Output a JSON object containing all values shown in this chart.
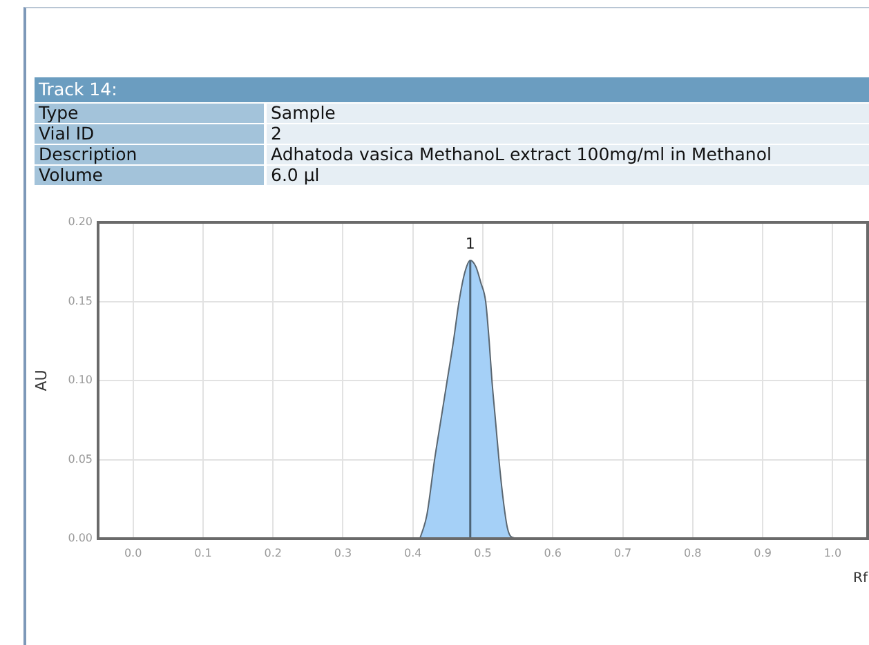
{
  "chart_data": {
    "type": "area",
    "title": "Track 14:",
    "annotations": [
      "Type",
      "Sample",
      "Vial ID",
      "2",
      "Description",
      "Adhatoda vasica MethanoL extract 100mg/ml in Methanol",
      "Volume",
      "6.0 µl",
      {
        "text": "1",
        "x": 0.482,
        "y": 0.176
      }
    ],
    "xlabel": "Rf",
    "ylabel": "AU",
    "x": [
      0.41,
      0.42,
      0.431,
      0.44,
      0.449,
      0.458,
      0.466,
      0.474,
      0.482,
      0.49,
      0.497,
      0.504,
      0.509,
      0.513,
      0.518,
      0.523,
      0.529,
      0.535,
      0.541,
      0.555
    ],
    "values": [
      0,
      0.015,
      0.05,
      0.075,
      0.1,
      0.125,
      0.15,
      0.168,
      0.176,
      0.172,
      0.162,
      0.15,
      0.125,
      0.1,
      0.075,
      0.05,
      0.025,
      0.007,
      0.001,
      0
    ],
    "color": "#a5d0f7",
    "xlim": [
      -0.05,
      1.05
    ],
    "xticks": [
      {
        "value": 0,
        "label": "0.0"
      },
      0.1,
      0.2,
      0.3,
      0.4,
      0.5,
      0.6,
      0.7,
      0.8,
      0.9,
      {
        "value": 1,
        "label": "1.0"
      }
    ],
    "ylim": [
      0,
      0.2
    ],
    "yticks": [
      {
        "value": 0,
        "label": "0.00"
      },
      {
        "value": 0.05,
        "label": "0.05"
      },
      {
        "value": 0.1,
        "label": "0.10"
      },
      {
        "value": 0.15,
        "label": "0.15"
      },
      {
        "value": 0.2,
        "label": "0.20"
      }
    ],
    "ref_lines": [
      {
        "axis": "x",
        "value": 0.482
      }
    ],
    "grid": true,
    "legend": false,
    "marker": "none"
  }
}
